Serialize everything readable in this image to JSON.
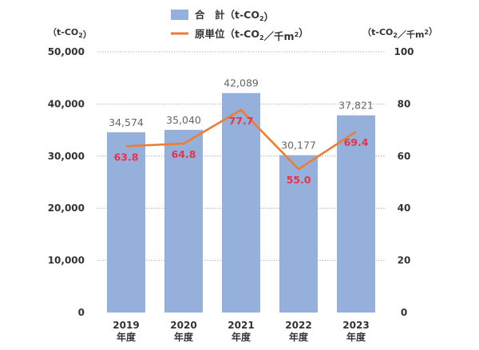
{
  "chart_data": {
    "type": "bar",
    "categories": [
      [
        "2019",
        "年度"
      ],
      [
        "2020",
        "年度"
      ],
      [
        "2021",
        "年度"
      ],
      [
        "2022",
        "年度"
      ],
      [
        "2023",
        "年度"
      ]
    ],
    "series": [
      {
        "name": "合　計（t-CO2）",
        "type": "bar",
        "axis": "left",
        "values": [
          34574,
          35040,
          42089,
          30177,
          37821
        ],
        "labels": [
          "34,574",
          "35,040",
          "42,089",
          "30,177",
          "37,821"
        ],
        "color": "#96b0dc"
      },
      {
        "name": "原単位（t-CO2／千m2）",
        "type": "line",
        "axis": "right",
        "values": [
          63.8,
          64.8,
          77.7,
          55.0,
          69.4
        ],
        "labels": [
          "63.8",
          "64.8",
          "77.7",
          "55.0",
          "69.4"
        ],
        "color": "#ed7d31",
        "label_color": "#e8324a"
      }
    ],
    "y_left": {
      "unit_label": "（t-CO2）",
      "ylim": [
        0,
        50000
      ],
      "ticks": [
        0,
        10000,
        20000,
        30000,
        40000,
        50000
      ],
      "tick_labels": [
        "0",
        "10,000",
        "20,000",
        "30,000",
        "40,000",
        "50,000"
      ]
    },
    "y_right": {
      "unit_label": "（t-CO2／千m2）",
      "ylim": [
        0,
        100
      ],
      "ticks": [
        0,
        20,
        40,
        60,
        80,
        100
      ],
      "tick_labels": [
        "0",
        "20",
        "40",
        "60",
        "80",
        "100"
      ]
    },
    "grid": true,
    "grid_style": "dotted",
    "legend_position": "top-center"
  }
}
